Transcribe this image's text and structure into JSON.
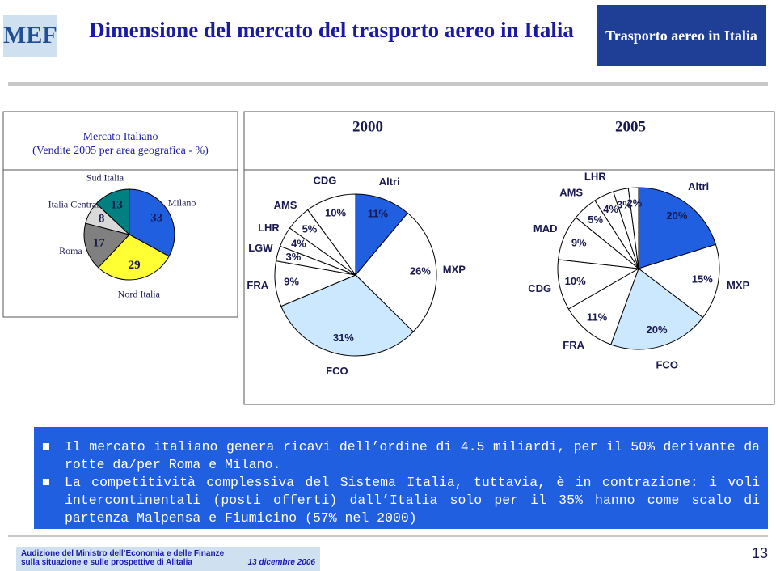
{
  "header": {
    "logo": "MEF",
    "title": "Dimensione del mercato del trasporto aereo in Italia",
    "section": "Trasporto aereo in Italia"
  },
  "chart_data": [
    {
      "type": "pie",
      "title": "Mercato Italiano",
      "subtitle": "(Vendite 2005 per area geografica - %)",
      "categories": [
        "Milano",
        "Nord Italia",
        "Roma",
        "Italia Centrale",
        "Sud Italia"
      ],
      "values": [
        33,
        29,
        17,
        8,
        13
      ],
      "colors": [
        "#1f5fe0",
        "#ffff33",
        "#808080",
        "#d9d9d9",
        "#008080"
      ]
    },
    {
      "type": "pie",
      "title": "2000",
      "categories": [
        "Altri",
        "MXP",
        "FCO",
        "FRA",
        "LGW",
        "LHR",
        "AMS",
        "CDG"
      ],
      "values": [
        11,
        26,
        31,
        9,
        3,
        4,
        5,
        10
      ],
      "value_labels": [
        "11%",
        "26%",
        "31%",
        "9%",
        "3%",
        "4%",
        "5%",
        "10%"
      ],
      "colors": [
        "#1f5fe0",
        "#ffffff",
        "#cce8ff",
        "#ffffff",
        "#ffffff",
        "#ffffff",
        "#ffffff",
        "#ffffff"
      ]
    },
    {
      "type": "pie",
      "title": "2005",
      "categories": [
        "Altri",
        "MXP",
        "FCO",
        "FRA",
        "CDG",
        "MAD",
        "AMS",
        "LHR",
        null,
        null
      ],
      "values": [
        20,
        15,
        20,
        11,
        10,
        9,
        5,
        4,
        3,
        2
      ],
      "value_labels": [
        "20%",
        "15%",
        "20%",
        "11%",
        "10%",
        "9%",
        "5%",
        "4%",
        "3%",
        "2%"
      ],
      "colors": [
        "#1f5fe0",
        "#ffffff",
        "#cce8ff",
        "#ffffff",
        "#ffffff",
        "#ffffff",
        "#ffffff",
        "#ffffff",
        "#ffffff",
        "#ffffff"
      ]
    }
  ],
  "bullets": [
    "Il mercato italiano genera ricavi dell’ordine di 4.5 miliardi, per il 50% derivante da rotte da/per Roma e Milano.",
    "La competitività complessiva del Sistema Italia, tuttavia, è in contrazione: i voli intercontinentali (posti offerti) dall’Italia solo per il 35% hanno come scalo di partenza Malpensa e Fiumicino (57% nel 2000)"
  ],
  "footer": {
    "line1": "Audizione del Ministro dell’Economia e delle Finanze",
    "line2": "sulla situazione e sulle prospettive di Alitalia",
    "date": "13 dicembre 2006",
    "page": "13"
  }
}
